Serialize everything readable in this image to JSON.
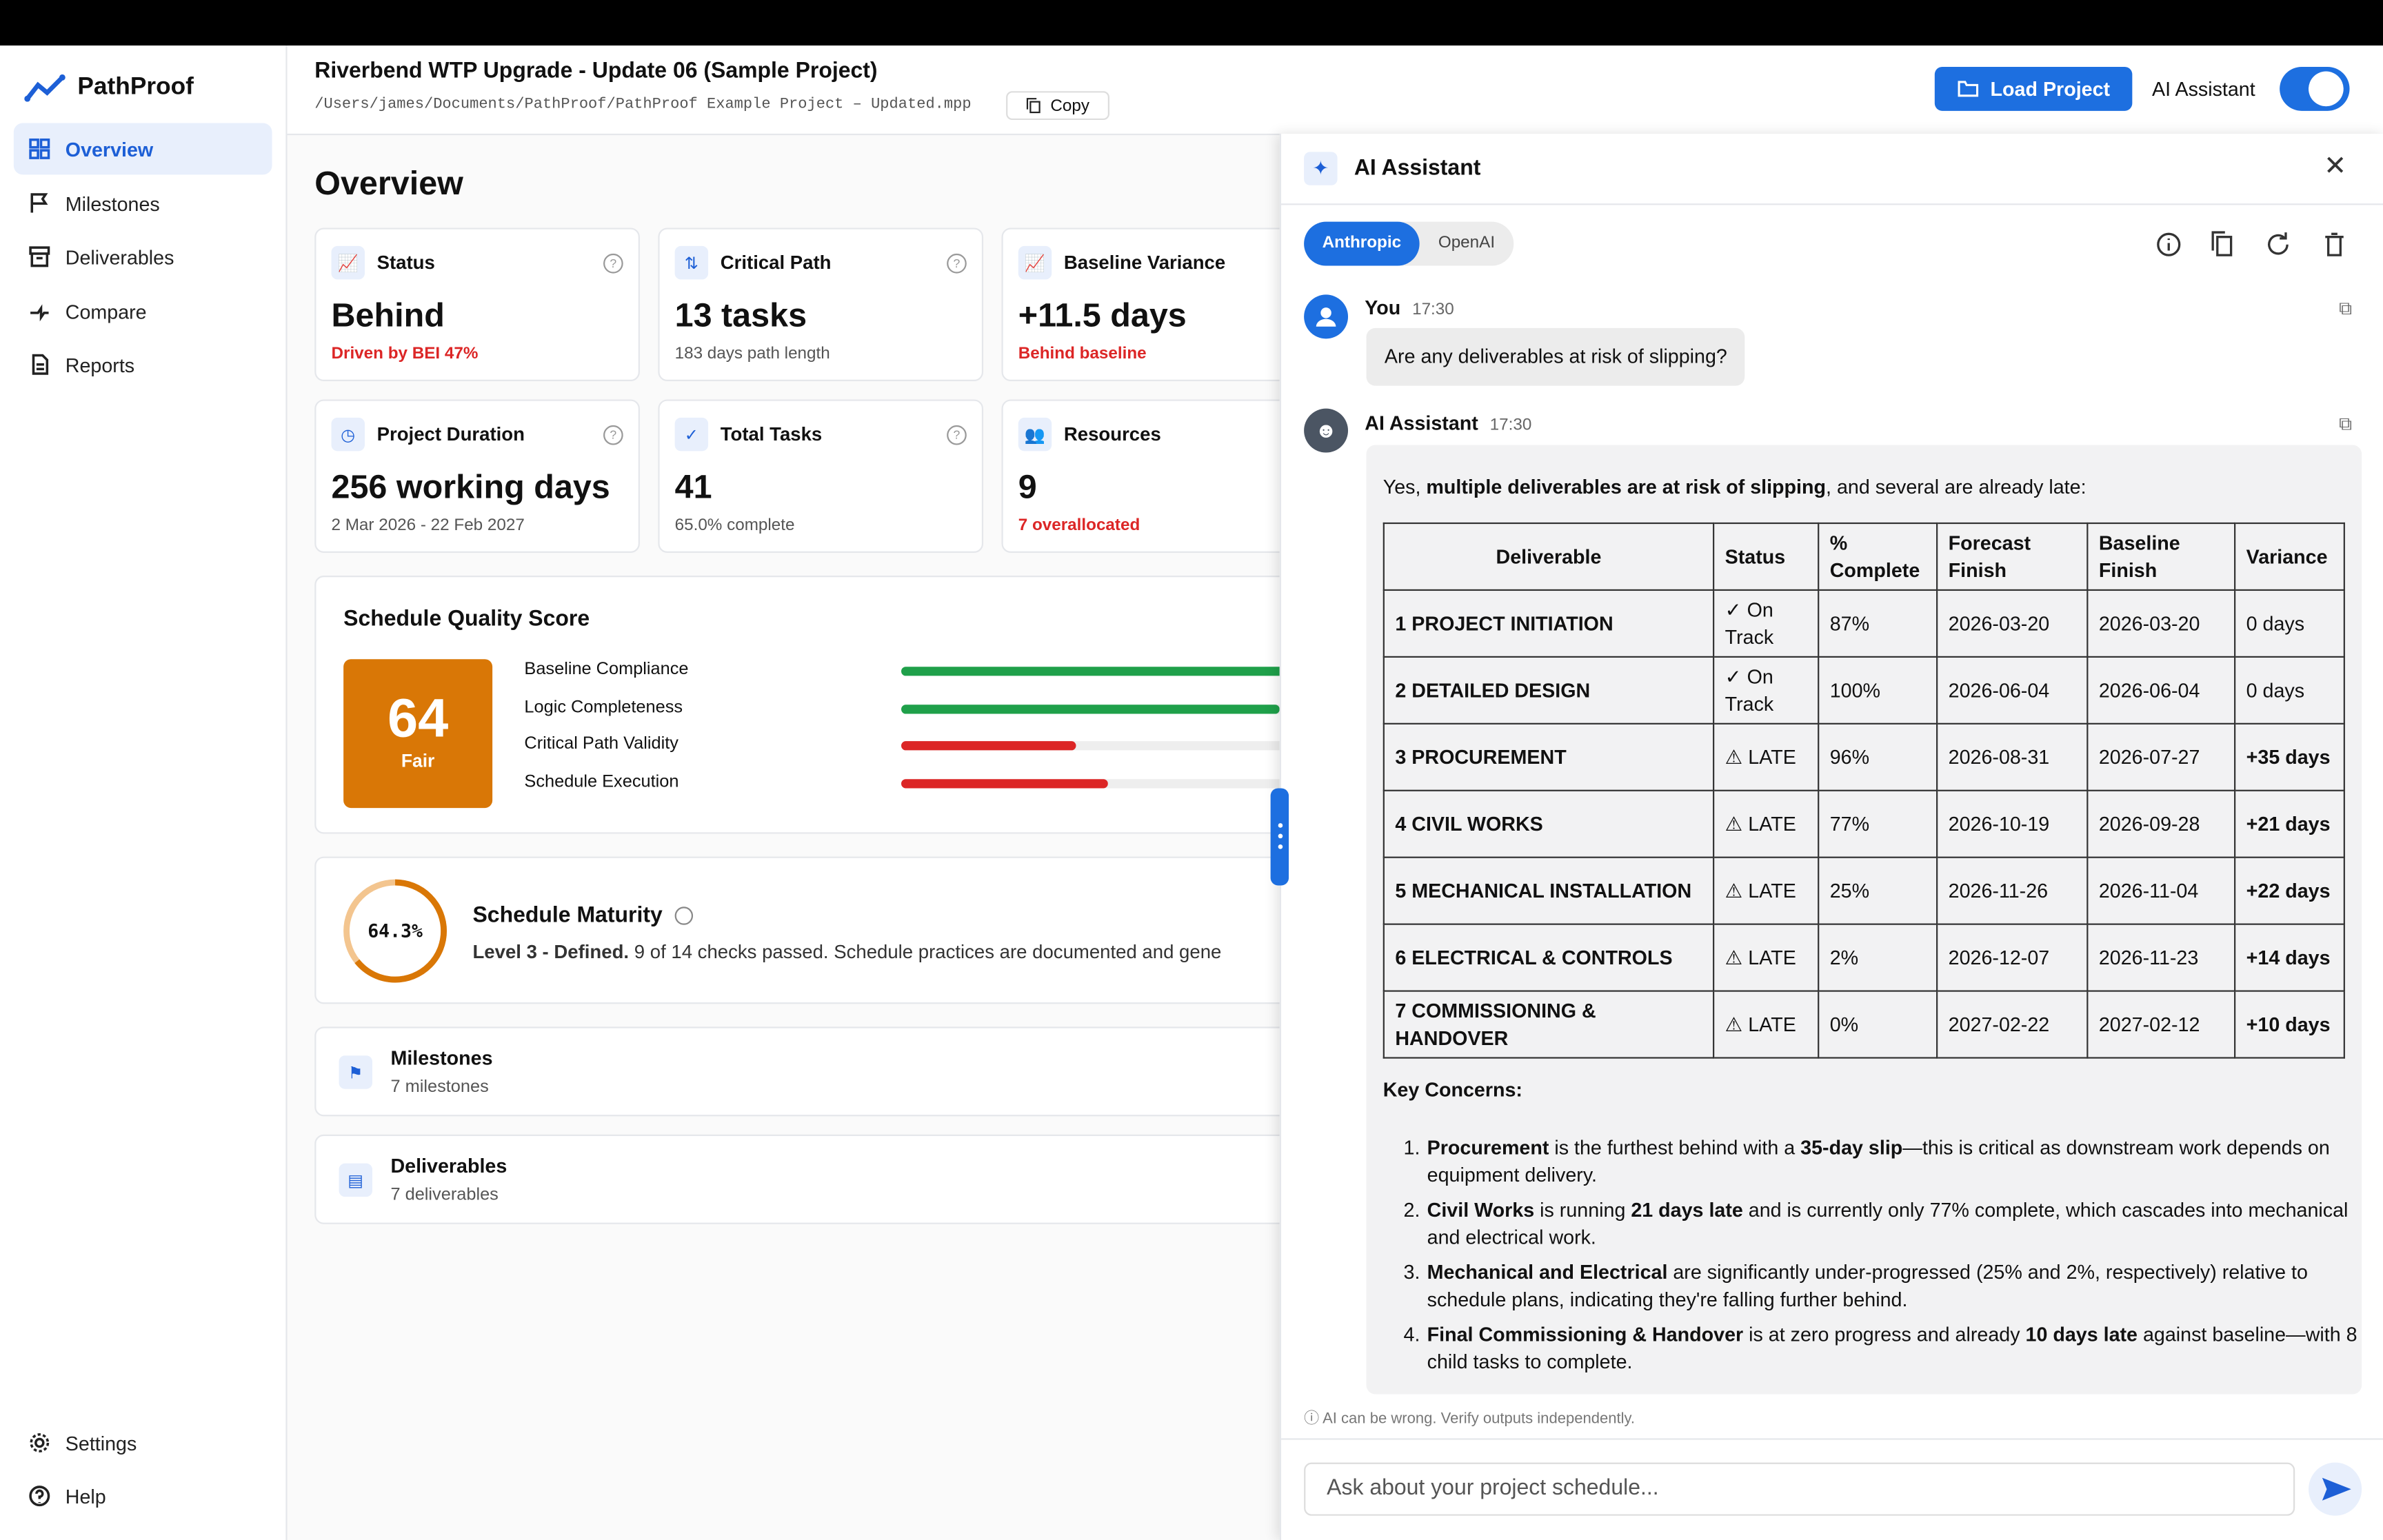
{
  "header": {
    "title": "Riverbend WTP Upgrade - Update 06 (Sample Project)",
    "path": "/Users/james/Documents/PathProof/PathProof Example Project – Updated.mpp",
    "copy": "Copy",
    "load_project": "Load Project",
    "assistant_toggle": "AI Assistant"
  },
  "sidebar": {
    "brand": "PathProof",
    "nav": [
      "Overview",
      "Milestones",
      "Deliverables",
      "Compare",
      "Reports"
    ],
    "footer": [
      "Settings",
      "Help"
    ]
  },
  "overview": {
    "heading": "Overview",
    "cards": [
      {
        "label": "Status",
        "value": "Behind",
        "sub": "Driven by BEI 47%"
      },
      {
        "label": "Critical Path",
        "value": "13 tasks",
        "sub": "183 days path length"
      },
      {
        "label": "Baseline Variance",
        "value": "+11.5 days",
        "sub": "Behind baseline"
      },
      {
        "label": "Project Duration",
        "value": "256 working days",
        "sub": "2 Mar 2026 - 22 Feb 2027"
      },
      {
        "label": "Total Tasks",
        "value": "41",
        "sub": "65.0% complete"
      },
      {
        "label": "Resources",
        "value": "9",
        "sub": "7 overallocated"
      }
    ],
    "quality": {
      "title": "Schedule Quality Score",
      "score": 64,
      "rating": "Fair",
      "metrics": [
        {
          "name": "Baseline Compliance",
          "value": 100,
          "color": "#1fa04a"
        },
        {
          "name": "Logic Completeness",
          "value": 95,
          "color": "#1fa04a"
        },
        {
          "name": "Critical Path Validity",
          "value": 44,
          "color": "#dc2626"
        },
        {
          "name": "Schedule Execution",
          "value": 52,
          "color": "#dc2626"
        }
      ]
    },
    "maturity": {
      "score": {
        "value": 64.3,
        "label": "64.3%"
      },
      "title": "Schedule Maturity",
      "level": "Level 3 - Defined.",
      "detail": "9 of 14 checks passed. Schedule practices are documented and gene"
    },
    "sections": [
      {
        "title": "Milestones",
        "sub": "7 milestones"
      },
      {
        "title": "Deliverables",
        "sub": "7 deliverables"
      }
    ]
  },
  "assistant": {
    "title": "AI Assistant",
    "providers": [
      "Anthropic",
      "OpenAI"
    ],
    "user": {
      "name": "You",
      "time": "17:30",
      "text": "Are any deliverables at risk of slipping?"
    },
    "reply": {
      "name": "AI Assistant",
      "time": "17:30",
      "intro": [
        "Yes, ",
        {
          "bold": "multiple deliverables are at risk of slipping"
        },
        ", and several are already late:"
      ],
      "table": {
        "headers": [
          "Deliverable",
          "Status",
          "% Complete",
          "Forecast Finish",
          "Baseline Finish",
          "Variance"
        ],
        "rows": [
          [
            "1 PROJECT INITIATION",
            "✓ On Track",
            "87%",
            "2026-03-20",
            "2026-03-20",
            "0 days"
          ],
          [
            "2 DETAILED DESIGN",
            "✓ On Track",
            "100%",
            "2026-06-04",
            "2026-06-04",
            "0 days"
          ],
          [
            "3 PROCUREMENT",
            "⚠ LATE",
            "96%",
            "2026-08-31",
            "2026-07-27",
            "+35 days"
          ],
          [
            "4 CIVIL WORKS",
            "⚠ LATE",
            "77%",
            "2026-10-19",
            "2026-09-28",
            "+21 days"
          ],
          [
            "5 MECHANICAL INSTALLATION",
            "⚠ LATE",
            "25%",
            "2026-11-26",
            "2026-11-04",
            "+22 days"
          ],
          [
            "6 ELECTRICAL & CONTROLS",
            "⚠ LATE",
            "2%",
            "2026-12-07",
            "2026-11-23",
            "+14 days"
          ],
          [
            "7 COMMISSIONING & HANDOVER",
            "⚠ LATE",
            "0%",
            "2027-02-22",
            "2027-02-12",
            "+10 days"
          ]
        ]
      },
      "concerns_title": "Key Concerns:",
      "concerns": [
        [
          {
            "bold": "Procurement"
          },
          " is the furthest behind with a ",
          {
            "bold": "35-day slip"
          },
          "—this is critical as downstream work depends on equipment delivery."
        ],
        [
          {
            "bold": "Civil Works"
          },
          " is running ",
          {
            "bold": "21 days late"
          },
          " and is currently only 77% complete, which cascades into mechanical and electrical work."
        ],
        [
          {
            "bold": "Mechanical and Electrical"
          },
          " are significantly under-progressed (25% and 2%, respectively) relative to schedule plans, indicating they're falling further behind."
        ],
        [
          {
            "bold": "Final Commissioning & Handover"
          },
          " is at zero progress and already ",
          {
            "bold": "10 days late"
          },
          " against baseline—with 8 child tasks to complete."
        ]
      ]
    },
    "disclaimer": "AI can be wrong. Verify outputs independently.",
    "placeholder": "Ask about your project schedule..."
  }
}
